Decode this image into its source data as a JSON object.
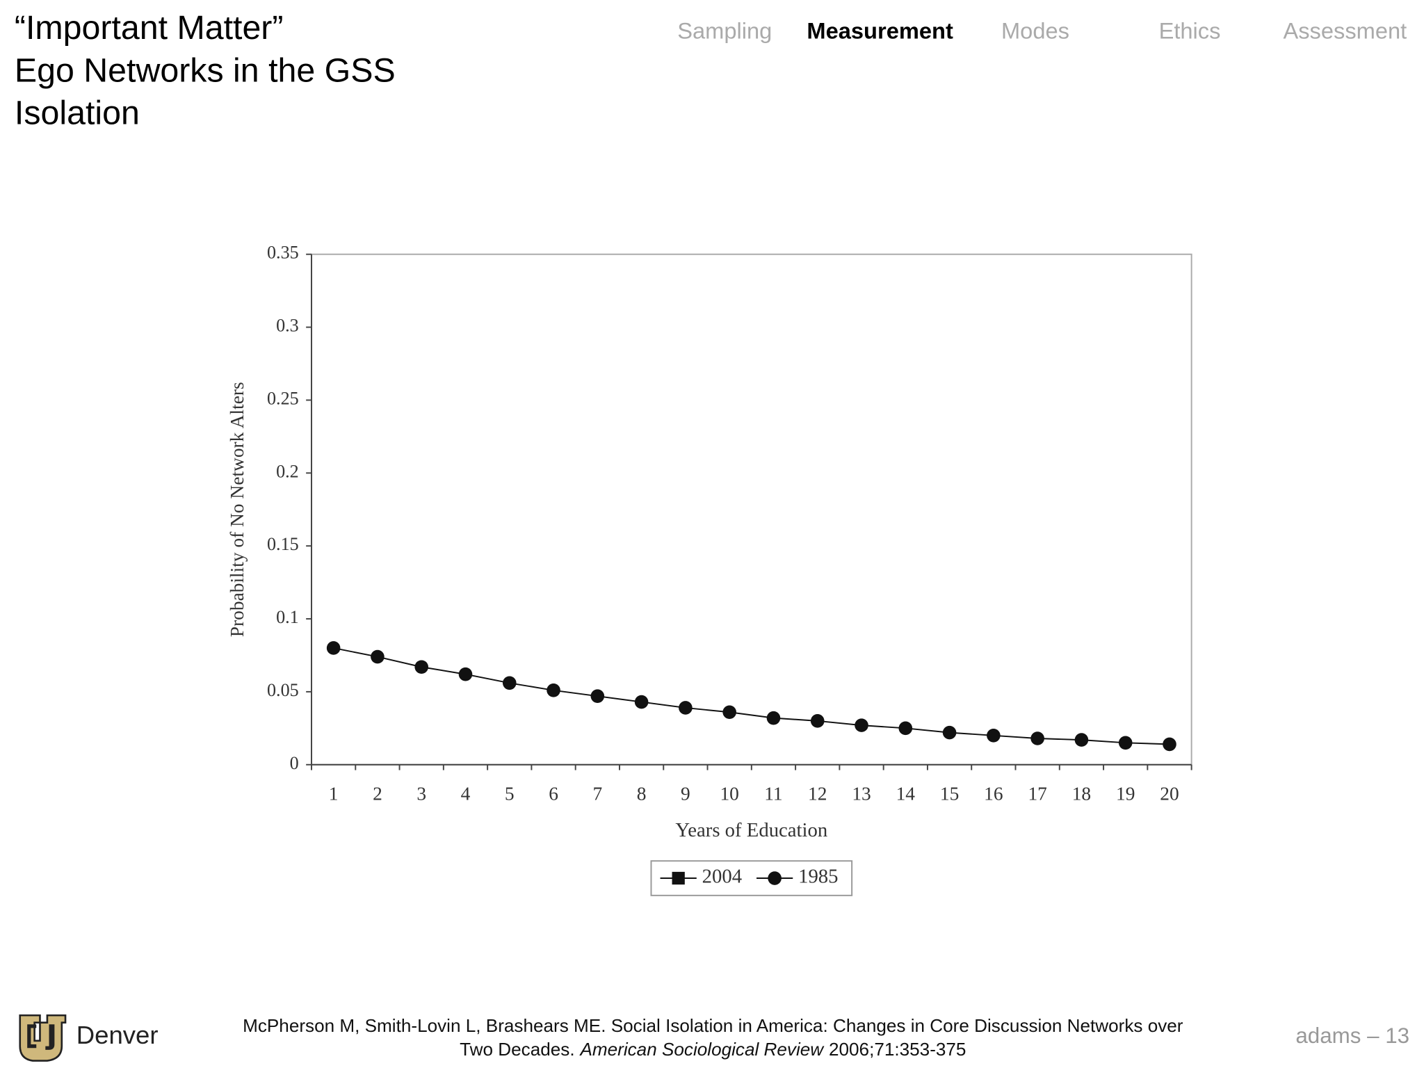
{
  "header": {
    "title_lines": [
      "“Important Matter”",
      "Ego Networks in the GSS",
      "Isolation"
    ]
  },
  "nav": {
    "items": [
      "Sampling",
      "Measurement",
      "Modes",
      "Ethics",
      "Assessment"
    ],
    "active": "Measurement"
  },
  "chart_data": {
    "type": "line",
    "x_label": "Years of Education",
    "y_label": "Probability of No Network Alters",
    "categories": [
      "1",
      "2",
      "3",
      "4",
      "5",
      "6",
      "7",
      "8",
      "9",
      "10",
      "11",
      "12",
      "13",
      "14",
      "15",
      "16",
      "17",
      "18",
      "19",
      "20"
    ],
    "series": [
      {
        "name": "2004",
        "color": "#111111",
        "marker": "square",
        "values": [
          null,
          null,
          null,
          null,
          null,
          null,
          null,
          null,
          null,
          null,
          null,
          null,
          null,
          null,
          null,
          null,
          null,
          null,
          null,
          null
        ]
      },
      {
        "name": "1985",
        "color": "#111111",
        "marker": "circle",
        "values": [
          0.08,
          0.074,
          0.067,
          0.062,
          0.056,
          0.051,
          0.047,
          0.043,
          0.039,
          0.036,
          0.032,
          0.03,
          0.027,
          0.025,
          0.022,
          0.02,
          0.018,
          0.017,
          0.015,
          0.014
        ]
      }
    ],
    "ylim": [
      0,
      0.35
    ],
    "yticks": [
      0,
      0.05,
      0.1,
      0.15,
      0.2,
      0.25,
      0.3,
      0.35
    ],
    "grid": false,
    "legend": "bottom"
  },
  "footer": {
    "logo_text": "Denver",
    "citation_line1": "McPherson M, Smith-Lovin L, Brashears ME. Social Isolation in America: Changes in Core Discussion Networks over",
    "citation_line2_start": "Two Decades.",
    "citation_journal": "American Sociological Review",
    "citation_details": "2006;71:353-375",
    "page": "adams – 13"
  }
}
